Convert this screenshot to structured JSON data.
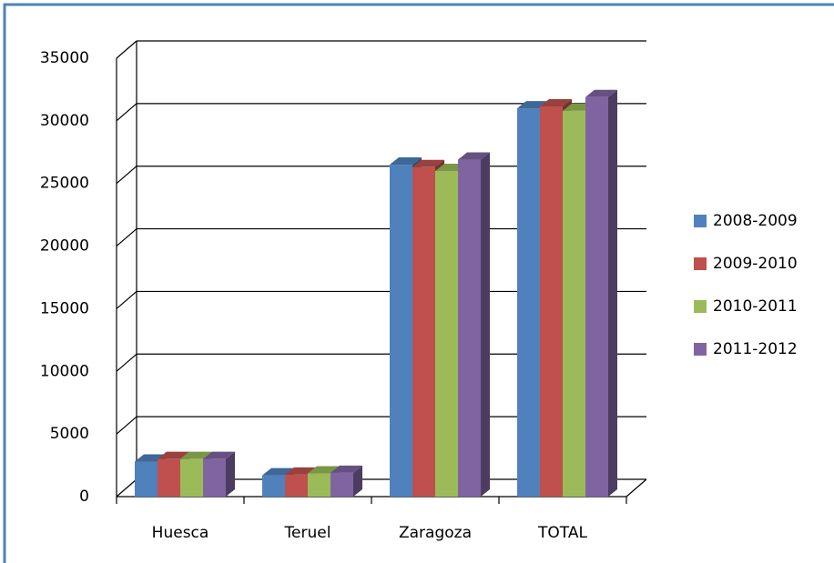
{
  "chart_data": {
    "type": "bar",
    "categories": [
      "Huesca",
      "Teruel",
      "Zaragoza",
      "TOTAL"
    ],
    "series": [
      {
        "name": "2008-2009",
        "color": "#4f81bd",
        "values": [
          2800,
          1700,
          26500,
          31000
        ]
      },
      {
        "name": "2009-2010",
        "color": "#c0504d",
        "values": [
          3000,
          1750,
          26300,
          31150
        ]
      },
      {
        "name": "2010-2011",
        "color": "#9bbb59",
        "values": [
          3000,
          1850,
          26000,
          30800
        ]
      },
      {
        "name": "2011-2012",
        "color": "#8064a2",
        "values": [
          3000,
          1900,
          26900,
          31900
        ]
      }
    ],
    "ylim": [
      0,
      35000
    ],
    "yticks": [
      0,
      5000,
      10000,
      15000,
      20000,
      25000,
      30000,
      35000
    ],
    "grid": true,
    "legend": "right"
  }
}
